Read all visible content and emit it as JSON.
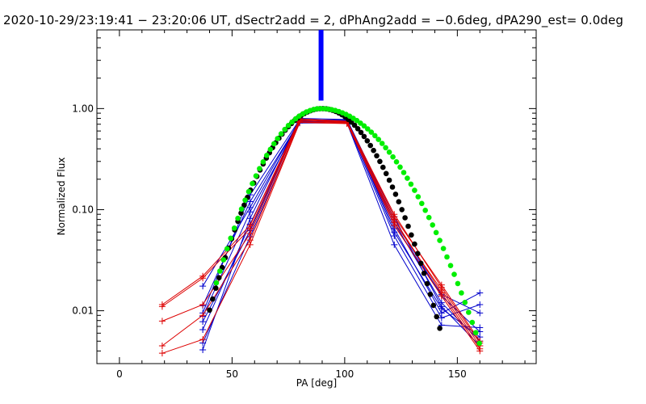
{
  "chart_data": {
    "type": "line",
    "title": "2020-10-29/23:19:41 − 23:20:06 UT, dSectr2add = 2, dPhAng2add = −0.6deg, dPA290_est=  0.0deg",
    "xlabel": "PA [deg]",
    "ylabel": "Normalized Flux",
    "xlim": [
      -10,
      185
    ],
    "ylim": [
      0.003,
      6.0
    ],
    "yscale": "log",
    "xticks": [
      0,
      50,
      100,
      150
    ],
    "xtick_labels": [
      "0",
      "50",
      "100",
      "150"
    ],
    "yticks": [
      0.01,
      0.1,
      1.0
    ],
    "ytick_labels": [
      "0.01",
      "0.10",
      "1.00"
    ],
    "marker_line": {
      "x": 89.5,
      "y_from": 1.2,
      "y_to": 6.0,
      "color": "#0000ff"
    },
    "colors": {
      "red": "#dd0000",
      "blue": "#0000cc",
      "green": "#00ee00",
      "black": "#000000"
    },
    "series": [
      {
        "name": "red-1",
        "color": "#dd0000",
        "x": [
          19,
          37,
          58,
          80,
          101,
          122,
          143,
          160
        ],
        "y": [
          0.011,
          0.021,
          0.065,
          0.78,
          0.74,
          0.085,
          0.018,
          0.005
        ]
      },
      {
        "name": "red-2",
        "color": "#dd0000",
        "x": [
          19,
          37,
          58,
          80,
          101,
          122,
          143,
          160
        ],
        "y": [
          0.0045,
          0.009,
          0.05,
          0.74,
          0.72,
          0.07,
          0.014,
          0.004
        ]
      },
      {
        "name": "red-3",
        "color": "#dd0000",
        "x": [
          19,
          37,
          58,
          80,
          101,
          122,
          143,
          160
        ],
        "y": [
          0.0079,
          0.0115,
          0.058,
          0.76,
          0.73,
          0.075,
          0.016,
          0.0045
        ]
      },
      {
        "name": "red-4",
        "color": "#dd0000",
        "x": [
          19,
          37,
          58,
          80,
          101,
          122,
          143,
          160
        ],
        "y": [
          0.0038,
          0.0052,
          0.045,
          0.73,
          0.71,
          0.08,
          0.015,
          0.0042
        ]
      },
      {
        "name": "red-5",
        "color": "#dd0000",
        "x": [
          19,
          37,
          58,
          80,
          101,
          122,
          143,
          160
        ],
        "y": [
          0.0115,
          0.022,
          0.07,
          0.79,
          0.75,
          0.09,
          0.017,
          0.0048
        ]
      },
      {
        "name": "blue-1",
        "color": "#0000cc",
        "x": [
          37,
          58,
          80,
          101,
          122,
          143,
          160
        ],
        "y": [
          0.0095,
          0.14,
          0.78,
          0.76,
          0.075,
          0.012,
          0.005
        ]
      },
      {
        "name": "blue-2",
        "color": "#0000cc",
        "x": [
          37,
          58,
          80,
          101,
          122,
          143,
          160
        ],
        "y": [
          0.0112,
          0.12,
          0.75,
          0.74,
          0.08,
          0.014,
          0.0062
        ]
      },
      {
        "name": "blue-3",
        "color": "#0000cc",
        "x": [
          37,
          58,
          80,
          101,
          122,
          143,
          160
        ],
        "y": [
          0.0065,
          0.072,
          0.74,
          0.75,
          0.065,
          0.0095,
          0.015
        ]
      },
      {
        "name": "blue-4",
        "color": "#0000cc",
        "x": [
          37,
          58,
          80,
          101,
          122,
          143,
          160
        ],
        "y": [
          0.0078,
          0.062,
          0.76,
          0.73,
          0.055,
          0.0085,
          0.0115
        ]
      },
      {
        "name": "blue-5",
        "color": "#0000cc",
        "x": [
          37,
          58,
          80,
          101,
          122,
          143,
          160
        ],
        "y": [
          0.0175,
          0.105,
          0.77,
          0.77,
          0.07,
          0.0145,
          0.0095
        ]
      },
      {
        "name": "blue-6",
        "color": "#0000cc",
        "x": [
          37,
          58,
          80,
          101,
          122,
          143,
          160
        ],
        "y": [
          0.0048,
          0.054,
          0.72,
          0.72,
          0.045,
          0.0072,
          0.0068
        ]
      },
      {
        "name": "blue-7",
        "color": "#0000cc",
        "x": [
          37,
          58,
          80,
          101,
          122,
          143,
          160
        ],
        "y": [
          0.0041,
          0.082,
          0.8,
          0.78,
          0.085,
          0.011,
          0.0045
        ]
      },
      {
        "name": "blue-8",
        "color": "#0000cc",
        "x": [
          37,
          58,
          80,
          101,
          122,
          143,
          160
        ],
        "y": [
          0.0088,
          0.095,
          0.73,
          0.76,
          0.06,
          0.0105,
          0.0055
        ]
      }
    ],
    "fit_curves": [
      {
        "name": "black-gaussian-fit",
        "color": "#000000",
        "center": 90,
        "sigma": 16.5,
        "x_range": [
          40,
          143
        ],
        "step": 1.4
      },
      {
        "name": "green-fit",
        "color": "#00ee00",
        "center": 89.5,
        "sigma_left": 16.5,
        "sigma_right": 21.5,
        "tail_floor": 0.0035,
        "x_range": [
          43,
          160
        ],
        "step": 1.6
      }
    ]
  }
}
